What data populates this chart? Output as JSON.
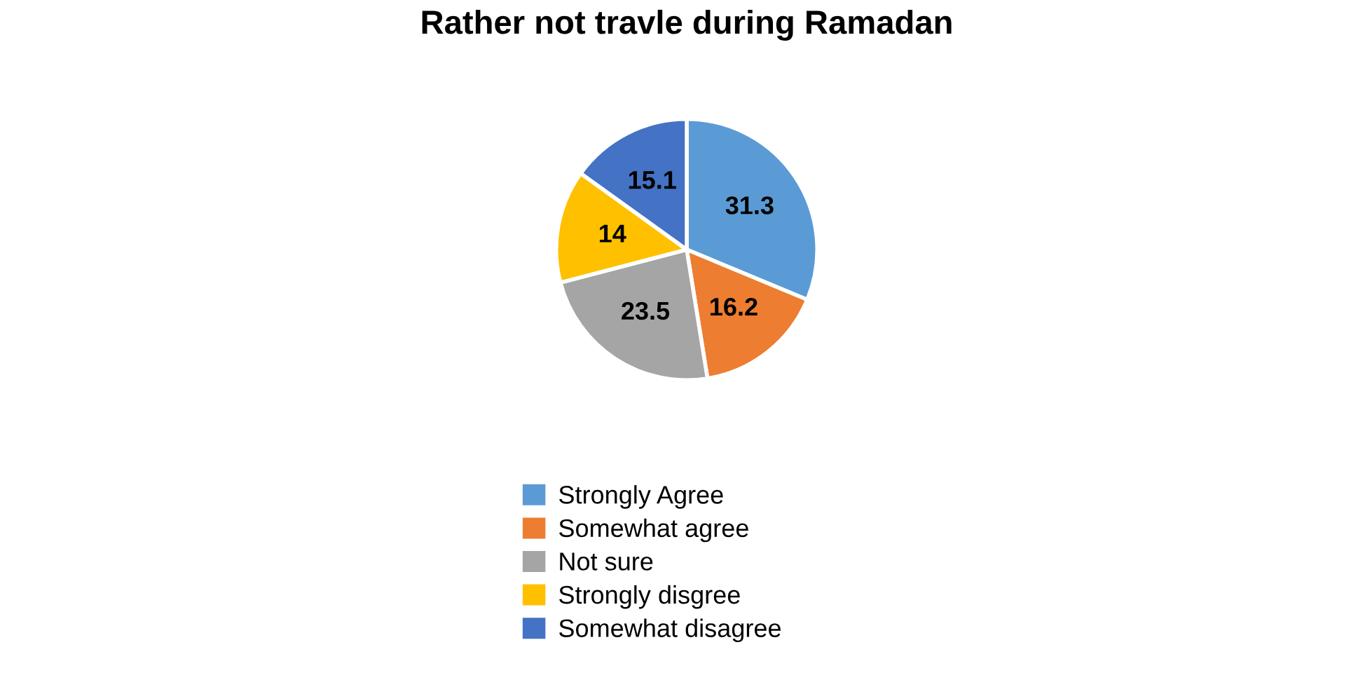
{
  "chart_data": {
    "type": "pie",
    "title": "Rather not travle during Ramadan",
    "categories": [
      "Strongly Agree",
      "Somewhat agree",
      "Not sure",
      "Strongly disgree",
      "Somewhat disagree"
    ],
    "values": [
      31.3,
      16.2,
      23.5,
      14,
      15.1
    ],
    "colors": [
      "#5b9bd5",
      "#ed7d31",
      "#a5a5a5",
      "#ffc000",
      "#4472c4"
    ],
    "data_labels": true,
    "legend": "bottom"
  }
}
